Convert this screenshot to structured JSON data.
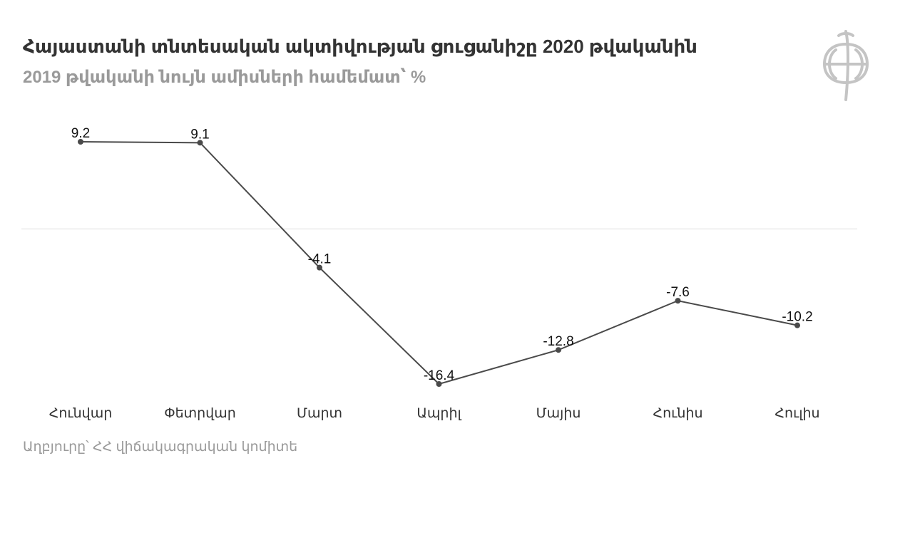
{
  "header": {
    "title": "Հայաստանի տնտեսական ակտիվության ցուցանիշը 2020 թվականին",
    "subtitle": "2019 թվականի նույն ամիսների համեմատ՝ %"
  },
  "footer": {
    "source": "Աղբյուրը՝ ՀՀ վիճակագրական կոմիտե"
  },
  "colors": {
    "line": "#4a4a4a",
    "marker": "#4a4a4a",
    "zero_line": "#e0e0e0",
    "title": "#333333",
    "subtitle": "#9a9a9a",
    "logo": "#c4c4c4"
  },
  "logo": {
    "icon": "armenian-letter-emblem-icon"
  },
  "chart_data": {
    "type": "line",
    "title": "Հայաստանի տնտեսական ակտիվության ցուցանիշը 2020 թվականին",
    "subtitle": "2019 թվականի նույն ամիսների համեմատ՝ %",
    "categories": [
      "Հունվար",
      "Փետրվար",
      "Մարտ",
      "Ապրիլ",
      "Մայիս",
      "Հունիս",
      "Հուլիս"
    ],
    "series": [
      {
        "values": [
          9.2,
          9.1,
          -4.1,
          -16.4,
          -12.8,
          -7.6,
          -10.2
        ],
        "labels": [
          "9.2",
          "9.1",
          "-4.1",
          "-16.4",
          "-12.8",
          "-7.6",
          "-10.2"
        ]
      }
    ],
    "ylim": [
      -16.4,
      9.2
    ],
    "grid": false,
    "zero_line": true,
    "data_labels": true,
    "xlabel": "",
    "ylabel": ""
  }
}
